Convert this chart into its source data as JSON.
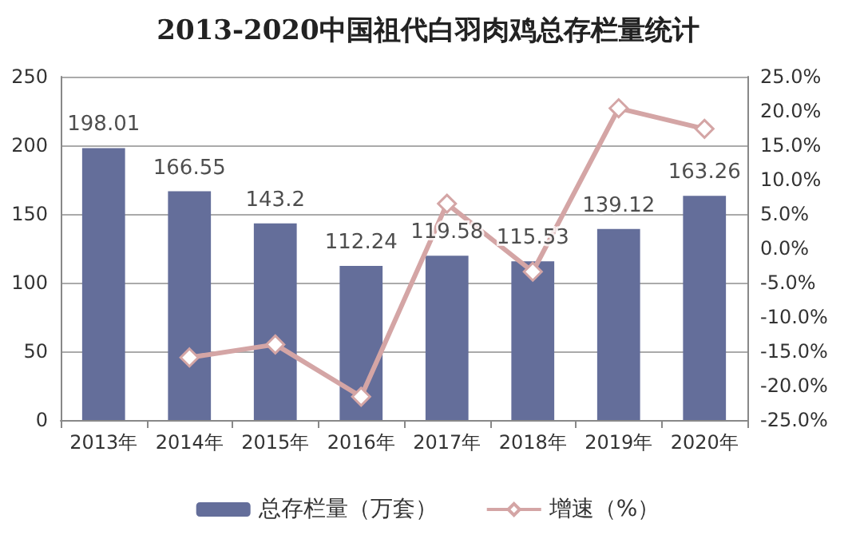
{
  "chart_data": {
    "type": "bar",
    "title": "2013-2020中国祖代白羽肉鸡总存栏量统计",
    "categories": [
      "2013年",
      "2014年",
      "2015年",
      "2016年",
      "2017年",
      "2018年",
      "2019年",
      "2020年"
    ],
    "series": [
      {
        "name": "总存栏量（万套）",
        "color": "#646e9a",
        "values": [
          198.01,
          166.55,
          143.2,
          112.24,
          119.58,
          115.53,
          139.12,
          163.26
        ],
        "value_labels": [
          "198.01",
          "166.55",
          "143.2",
          "112.24",
          "119.58",
          "115.53",
          "139.12",
          "163.26"
        ]
      },
      {
        "name": "增速（%）",
        "type": "line",
        "axis": "y2",
        "color": "#d4a5a5",
        "marker": "diamond",
        "values": [
          null,
          -15.9,
          -14.0,
          -21.6,
          6.5,
          -3.4,
          20.4,
          17.4
        ]
      }
    ],
    "ylim": [
      0,
      250
    ],
    "yticks": [
      0,
      50,
      100,
      150,
      200,
      250
    ],
    "y2lim": [
      -25,
      25
    ],
    "y2ticks": [
      {
        "value": -25,
        "label": "-25.0%"
      },
      {
        "value": -20,
        "label": "-20.0%"
      },
      {
        "value": -15,
        "label": "-15.0%"
      },
      {
        "value": -10,
        "label": "-10.0%"
      },
      {
        "value": -5,
        "label": "-5.0%"
      },
      {
        "value": 0,
        "label": "0.0%"
      },
      {
        "value": 5,
        "label": "5.0%"
      },
      {
        "value": 10,
        "label": "10.0%"
      },
      {
        "value": 15,
        "label": "15.0%"
      },
      {
        "value": 20,
        "label": "20.0%"
      },
      {
        "value": 25,
        "label": "25.0%"
      }
    ],
    "grid": "y",
    "legend": "bottom"
  }
}
